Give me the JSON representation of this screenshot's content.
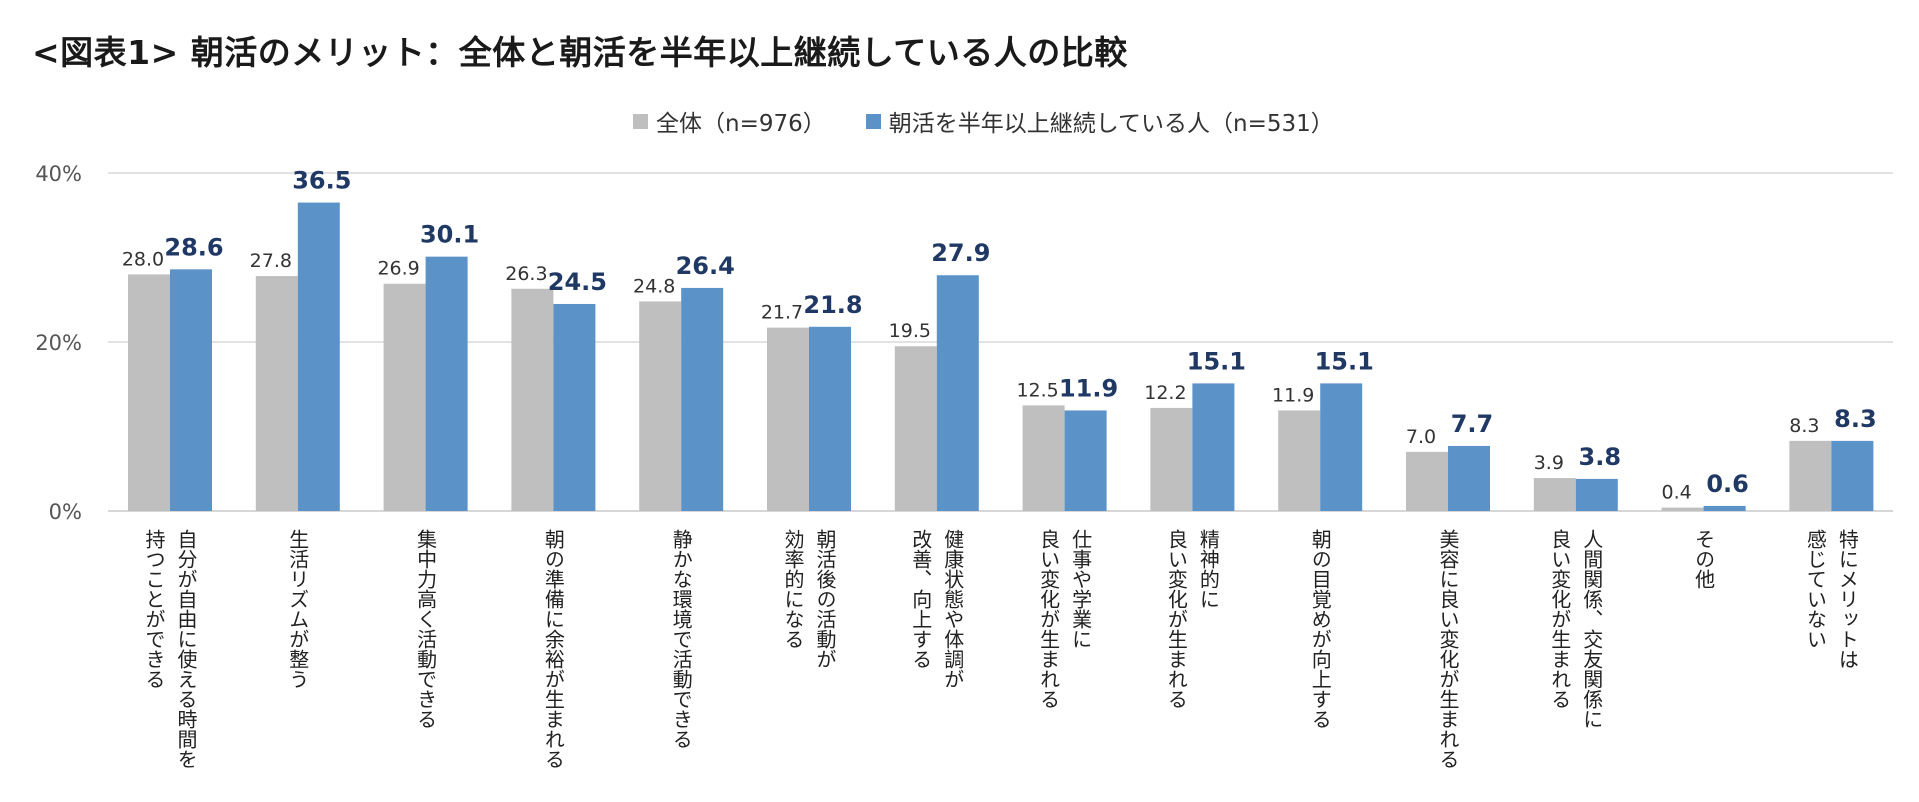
{
  "title": "<図表1> 朝活のメリット：全体と朝活を半年以上継続している人の比較",
  "legend": {
    "all_label": "全体（n=976）",
    "cont_label": "朝活を半年以上継続している人（n=531）"
  },
  "colors": {
    "all": "#bfbfbf",
    "cont": "#5b93c9",
    "grid": "#d0d0d0",
    "cont_label_text": "#1f3864"
  },
  "chart_data": {
    "type": "bar",
    "title": "<図表1> 朝活のメリット：全体と朝活を半年以上継続している人の比較",
    "xlabel": "",
    "ylabel": "",
    "ylim": [
      0,
      40
    ],
    "yticks": [
      0,
      20,
      40
    ],
    "ytick_labels": [
      "0%",
      "20%",
      "40%"
    ],
    "grid": true,
    "legend_position": "top-center",
    "categories": [
      [
        "自分が自由に使える時間を",
        "持つことができる"
      ],
      [
        "生活リズムが整う"
      ],
      [
        "集中力高く活動できる"
      ],
      [
        "朝の準備に余裕が生まれる"
      ],
      [
        "静かな環境で活動できる"
      ],
      [
        "朝活後の活動が",
        "効率的になる"
      ],
      [
        "健康状態や体調が",
        "改善、向上する"
      ],
      [
        "仕事や学業に",
        "良い変化が生まれる"
      ],
      [
        "精神的に",
        "良い変化が生まれる"
      ],
      [
        "朝の目覚めが向上する"
      ],
      [
        "美容に良い変化が生まれる"
      ],
      [
        "人間関係、交友関係に",
        "良い変化が生まれる"
      ],
      [
        "その他"
      ],
      [
        "特にメリットは",
        "感じていない"
      ]
    ],
    "series": [
      {
        "name": "全体（n=976）",
        "values": [
          28.0,
          27.8,
          26.9,
          26.3,
          24.8,
          21.7,
          19.5,
          12.5,
          12.2,
          11.9,
          7.0,
          3.9,
          0.4,
          8.3
        ],
        "labels": [
          "28.0",
          "27.8",
          "26.9",
          "26.3",
          "24.8",
          "21.7",
          "19.5",
          "12.5",
          "12.2",
          "11.9",
          "7.0",
          "3.9",
          "0.4",
          "8.3"
        ]
      },
      {
        "name": "朝活を半年以上継続している人（n=531）",
        "values": [
          28.6,
          36.5,
          30.1,
          24.5,
          26.4,
          21.8,
          27.9,
          11.9,
          15.1,
          15.1,
          7.7,
          3.8,
          0.6,
          8.3
        ],
        "labels": [
          "28.6",
          "36.5",
          "30.1",
          "24.5",
          "26.4",
          "21.8",
          "27.9",
          "11.9",
          "15.1",
          "15.1",
          "7.7",
          "3.8",
          "0.6",
          "8.3"
        ]
      }
    ]
  }
}
